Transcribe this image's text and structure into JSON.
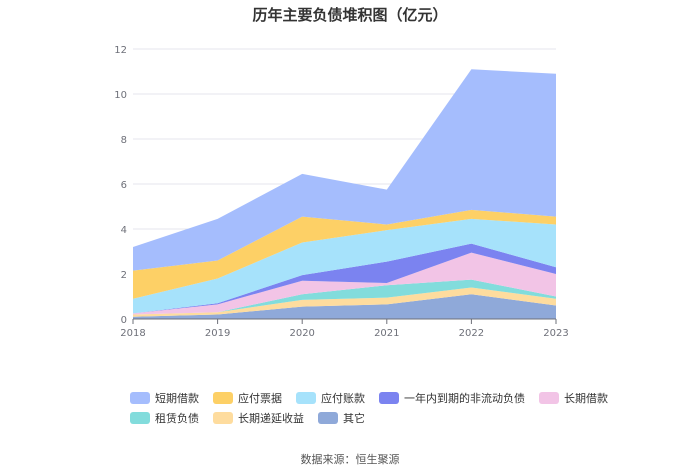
{
  "chart_data": {
    "type": "area",
    "stacked": true,
    "title": "历年主要负债堆积图（亿元）",
    "source": "数据来源：恒生聚源",
    "categories": [
      "2018",
      "2019",
      "2020",
      "2021",
      "2022",
      "2023"
    ],
    "ylim": [
      0,
      12
    ],
    "yticks": [
      "0",
      "2",
      "4",
      "6",
      "8",
      "10",
      "12"
    ],
    "grid": true,
    "legend_position": "bottom",
    "series": [
      {
        "name": "其它",
        "color": "#8fa9d9",
        "values": [
          0.1,
          0.2,
          0.55,
          0.65,
          1.1,
          0.6
        ]
      },
      {
        "name": "长期递延收益",
        "color": "#fedc9e",
        "values": [
          0.1,
          0.1,
          0.3,
          0.3,
          0.3,
          0.3
        ]
      },
      {
        "name": "租赁负债",
        "color": "#82dcdc",
        "values": [
          0.0,
          0.0,
          0.25,
          0.55,
          0.35,
          0.1
        ]
      },
      {
        "name": "长期借款",
        "color": "#f2c4e6",
        "values": [
          0.05,
          0.35,
          0.6,
          0.1,
          1.2,
          1.0
        ]
      },
      {
        "name": "一年内到期的非流动负债",
        "color": "#7b83f0",
        "values": [
          0.0,
          0.05,
          0.25,
          0.95,
          0.4,
          0.3
        ]
      },
      {
        "name": "应付账款",
        "color": "#a6e2fb",
        "values": [
          0.65,
          1.1,
          1.45,
          1.4,
          1.1,
          1.9
        ]
      },
      {
        "name": "应付票据",
        "color": "#fdd066",
        "values": [
          1.25,
          0.8,
          1.15,
          0.25,
          0.4,
          0.35
        ]
      },
      {
        "name": "短期借款",
        "color": "#a5bdfd",
        "values": [
          1.05,
          1.85,
          1.9,
          1.55,
          6.25,
          6.35
        ]
      }
    ],
    "legend_order": [
      "短期借款",
      "应付票据",
      "应付账款",
      "一年内到期的非流动负债",
      "长期借款",
      "租赁负债",
      "长期递延收益",
      "其它"
    ]
  }
}
